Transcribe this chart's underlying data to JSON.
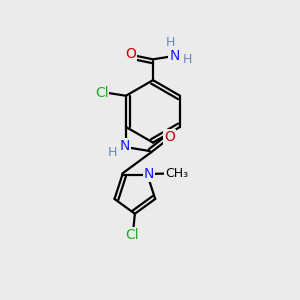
{
  "bg_color": "#ebebeb",
  "bond_color": "#000000",
  "colors": {
    "C": "#000000",
    "N": "#1a1aff",
    "O": "#cc0000",
    "Cl": "#22aa22",
    "H": "#6688bb"
  }
}
